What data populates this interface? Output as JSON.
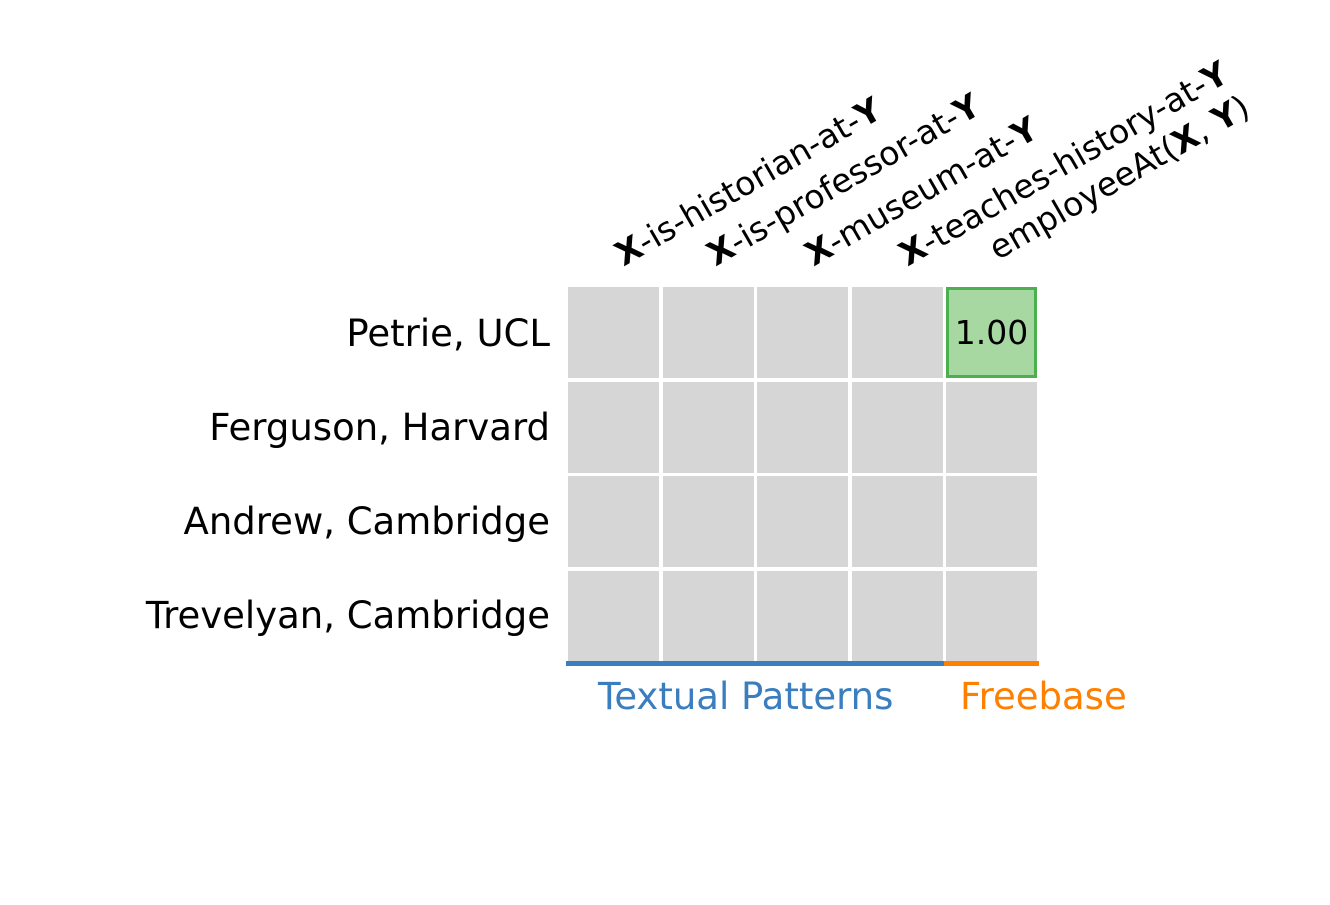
{
  "columns": [
    {
      "pre": "X",
      "mid": "-is-historian-at-",
      "post": "Y",
      "suffix": ""
    },
    {
      "pre": "X",
      "mid": "-is-professor-at-",
      "post": "Y",
      "suffix": ""
    },
    {
      "pre": "X",
      "mid": "-museum-at-",
      "post": "Y",
      "suffix": ""
    },
    {
      "pre": "X",
      "mid": "-teaches-history-at-",
      "post": "Y",
      "suffix": ""
    },
    {
      "pre": "employeeAt(",
      "mid": "X",
      "post": ", ",
      "suffix": "Y",
      "end": ")"
    }
  ],
  "rows": [
    "Petrie, UCL",
    "Ferguson, Harvard",
    "Andrew, Cambridge",
    "Trevelyan, Cambridge"
  ],
  "highlight": {
    "row": 0,
    "col": 4,
    "value": "1.00"
  },
  "groups": {
    "textual": {
      "label": "Textual Patterns",
      "color": "#3a7ebf"
    },
    "freebase": {
      "label": "Freebase",
      "color": "#ff8000"
    }
  },
  "colors": {
    "cell": "#d6d6d6",
    "highlight_fill": "#a7d8a2",
    "highlight_border": "#4caf50"
  }
}
